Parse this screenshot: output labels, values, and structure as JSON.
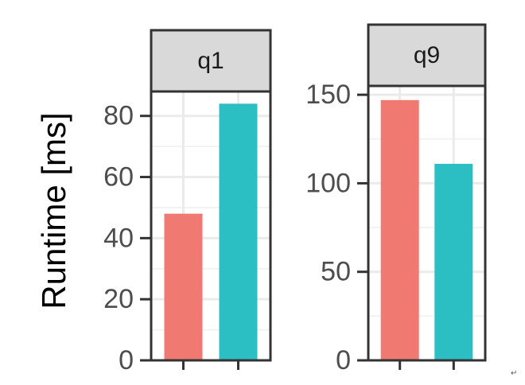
{
  "chart_data": {
    "type": "bar",
    "ylabel": "Runtime [ms]",
    "categories": [
      "",
      ""
    ],
    "colors": [
      "#f07a72",
      "#2bbfc4"
    ],
    "facets": [
      {
        "label": "q1",
        "values": [
          48,
          84
        ],
        "ylim": [
          0,
          88
        ],
        "yticks": [
          0,
          20,
          40,
          60,
          80
        ]
      },
      {
        "label": "q9",
        "values": [
          147,
          111
        ],
        "ylim": [
          0,
          155
        ],
        "yticks": [
          0,
          50,
          100,
          150
        ]
      }
    ],
    "grid": true,
    "legend": "none"
  },
  "mark": "↵"
}
